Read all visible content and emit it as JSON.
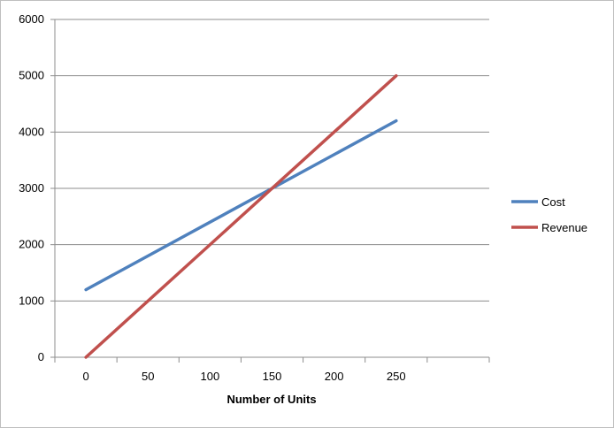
{
  "chart_data": {
    "type": "line",
    "title": "",
    "xlabel": "Number of Units",
    "ylabel": "",
    "x": [
      0,
      250
    ],
    "x_ticks": [
      "0",
      "50",
      "100",
      "150",
      "200",
      "250"
    ],
    "y_ticks": [
      "0",
      "1000",
      "2000",
      "3000",
      "4000",
      "5000",
      "6000"
    ],
    "xlim": [
      -25,
      325
    ],
    "ylim": [
      0,
      6000
    ],
    "grid": "horizontal",
    "legend_position": "right",
    "series": [
      {
        "name": "Cost",
        "color": "#4f81bd",
        "points": [
          [
            0,
            1200
          ],
          [
            250,
            4200
          ]
        ]
      },
      {
        "name": "Revenue",
        "color": "#c0504d",
        "points": [
          [
            0,
            0
          ],
          [
            250,
            5000
          ]
        ]
      }
    ]
  }
}
